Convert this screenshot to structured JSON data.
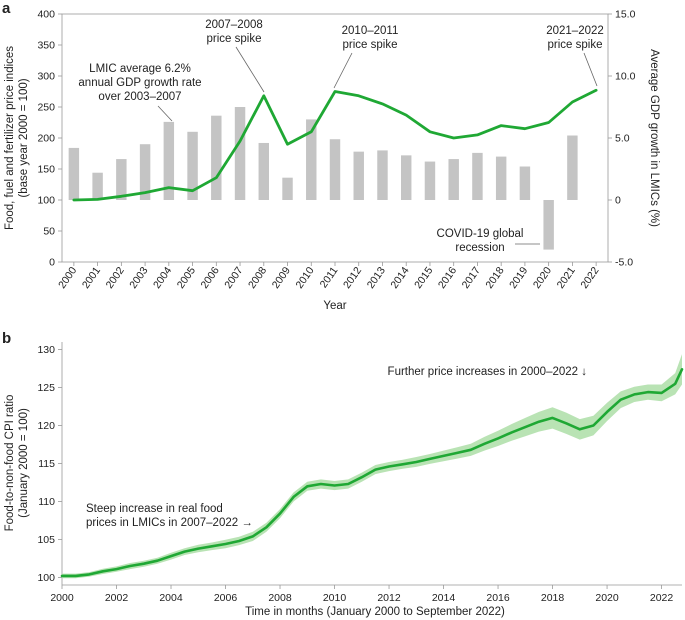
{
  "chart_data": [
    {
      "panel": "a",
      "type": "bar+line",
      "xlabel": "Year",
      "ylabel_left": "Food, fuel and fertilizer price indices",
      "ylabel_left_sub": "(base year 2000 = 100)",
      "ylabel_right": "Average GDP growth in LMICs (%)",
      "categories": [
        "2000",
        "2001",
        "2002",
        "2003",
        "2004",
        "2005",
        "2006",
        "2007",
        "2008",
        "2009",
        "2010",
        "2011",
        "2012",
        "2013",
        "2014",
        "2015",
        "2016",
        "2017",
        "2018",
        "2019",
        "2020",
        "2021",
        "2022"
      ],
      "ylim_left": [
        0,
        400
      ],
      "yticks_left": [
        0,
        50,
        100,
        150,
        200,
        250,
        300,
        350,
        400
      ],
      "ylim_right": [
        -5.0,
        15.0
      ],
      "yticks_right": [
        -5.0,
        0,
        5.0,
        10.0,
        15.0
      ],
      "ytick_labels_right": [
        "-5.0",
        "0",
        "5.0",
        "10.0",
        "15.0"
      ],
      "series": [
        {
          "name": "Average GDP growth in LMICs (%)",
          "type": "bar",
          "axis": "right",
          "color": "#c4c4c4",
          "values": [
            4.2,
            2.2,
            3.3,
            4.5,
            6.3,
            5.5,
            6.8,
            7.5,
            4.6,
            1.8,
            6.5,
            4.9,
            3.9,
            4.0,
            3.6,
            3.1,
            3.3,
            3.8,
            3.5,
            2.7,
            -4.0,
            5.2,
            null
          ]
        },
        {
          "name": "Food, fuel and fertilizer price index",
          "type": "line",
          "axis": "left",
          "color": "#1fa834",
          "values": [
            100,
            101,
            106,
            112,
            120,
            115,
            136,
            195,
            268,
            190,
            210,
            275,
            268,
            255,
            237,
            210,
            200,
            205,
            220,
            215,
            225,
            258,
            277
          ]
        }
      ],
      "annotations": [
        {
          "lines": [
            "LMIC average 6.2%",
            "annual GDP growth rate",
            "over 2003–2007"
          ]
        },
        {
          "lines": [
            "2007–2008",
            "price spike"
          ]
        },
        {
          "lines": [
            "2010–2011",
            "price spike"
          ]
        },
        {
          "lines": [
            "2021–2022",
            "price spike"
          ]
        },
        {
          "lines": [
            "COVID-19 global",
            "recession"
          ]
        }
      ]
    },
    {
      "panel": "b",
      "type": "line",
      "xlabel": "Time in months (January 2000 to September 2022)",
      "ylabel": "Food-to-non-food CPI ratio",
      "ylabel_sub": "(January 2000 = 100)",
      "xlim": [
        2000,
        2022.75
      ],
      "ylim": [
        99,
        131
      ],
      "xticks": [
        2000,
        2002,
        2004,
        2006,
        2008,
        2010,
        2012,
        2014,
        2016,
        2018,
        2020,
        2022
      ],
      "yticks": [
        100,
        105,
        110,
        115,
        120,
        125,
        130
      ],
      "series": [
        {
          "name": "Food-to-non-food CPI ratio",
          "color": "#1fa834",
          "band_color": "#b9e3b4",
          "x": [
            2000,
            2000.5,
            2001,
            2001.5,
            2002,
            2002.5,
            2003,
            2003.5,
            2004,
            2004.5,
            2005,
            2005.5,
            2006,
            2006.5,
            2007,
            2007.5,
            2008,
            2008.5,
            2009,
            2009.5,
            2010,
            2010.5,
            2011,
            2011.5,
            2012,
            2012.5,
            2013,
            2013.5,
            2014,
            2014.5,
            2015,
            2015.5,
            2016,
            2016.5,
            2017,
            2017.5,
            2018,
            2018.5,
            2019,
            2019.5,
            2020,
            2020.5,
            2021,
            2021.5,
            2022,
            2022.5,
            2022.75
          ],
          "y": [
            100.2,
            100.2,
            100.4,
            100.8,
            101.1,
            101.5,
            101.8,
            102.2,
            102.8,
            103.4,
            103.8,
            104.1,
            104.4,
            104.8,
            105.4,
            106.6,
            108.4,
            110.6,
            112.0,
            112.3,
            112.1,
            112.3,
            113.2,
            114.2,
            114.6,
            114.9,
            115.2,
            115.6,
            116.0,
            116.4,
            116.8,
            117.6,
            118.3,
            119.1,
            119.8,
            120.5,
            121.0,
            120.3,
            119.5,
            120.0,
            121.8,
            123.4,
            124.1,
            124.4,
            124.3,
            125.5,
            127.4
          ],
          "band_halfwidth": [
            0.3,
            0.3,
            0.3,
            0.35,
            0.35,
            0.4,
            0.4,
            0.4,
            0.45,
            0.45,
            0.5,
            0.5,
            0.55,
            0.55,
            0.6,
            0.6,
            0.6,
            0.6,
            0.6,
            0.6,
            0.6,
            0.6,
            0.6,
            0.6,
            0.6,
            0.6,
            0.65,
            0.65,
            0.7,
            0.75,
            0.8,
            0.9,
            1.0,
            1.1,
            1.2,
            1.3,
            1.4,
            1.4,
            1.35,
            1.3,
            1.2,
            1.1,
            1.0,
            1.0,
            1.1,
            1.4,
            2.0
          ]
        }
      ],
      "annotations": [
        {
          "lines": [
            "Further price increases in 2000–2022 ↓"
          ]
        },
        {
          "lines": [
            "Steep increase in real food",
            "prices in LMICs in 2007–2022 →"
          ]
        }
      ]
    }
  ]
}
